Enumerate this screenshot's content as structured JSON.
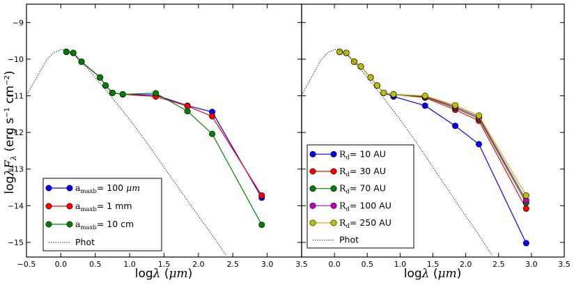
{
  "chart_data": [
    {
      "type": "line",
      "panel": "left",
      "xlabel": "logλ (μm)",
      "ylabel": "logλF_λ (erg s^-1 cm^-2)",
      "xlim": [
        -0.5,
        3.5
      ],
      "ylim": [
        -15.4,
        -8.5
      ],
      "xticks": [
        -0.5,
        0.0,
        0.5,
        1.0,
        1.5,
        2.0,
        2.5,
        3.0,
        3.5
      ],
      "xtick_labels": [
        "−0.5",
        "0.0",
        "0.5",
        "1.0",
        "1.5",
        "2.0",
        "2.5",
        "3.0",
        "3.5"
      ],
      "yticks": [
        -15,
        -14,
        -13,
        -12,
        -11,
        -10,
        -9
      ],
      "ytick_labels": [
        "−15",
        "−14",
        "−13",
        "−12",
        "−11",
        "−10",
        "−9"
      ],
      "legend_location": "lower-left",
      "series": [
        {
          "name": "a_maxb = 100 μm",
          "label_sub": "maxb",
          "label_rest": "= 100 ",
          "label_unit": "μm",
          "color": "#0000ff",
          "x": [
            0.08,
            0.18,
            0.3,
            0.57,
            0.65,
            0.75,
            0.9,
            1.38,
            1.84,
            2.2,
            2.92
          ],
          "y": [
            -9.8,
            -9.83,
            -10.07,
            -10.5,
            -10.72,
            -10.92,
            -10.96,
            -10.98,
            -11.27,
            -11.44,
            -13.78
          ]
        },
        {
          "name": "a_maxb = 1 mm",
          "label_sub": "maxb",
          "label_rest": "= 1 mm",
          "label_unit": "",
          "color": "#ff0000",
          "x": [
            0.08,
            0.18,
            0.3,
            0.57,
            0.65,
            0.75,
            0.9,
            1.38,
            1.84,
            2.2,
            2.92
          ],
          "y": [
            -9.8,
            -9.83,
            -10.07,
            -10.5,
            -10.72,
            -10.92,
            -10.96,
            -11.02,
            -11.28,
            -11.56,
            -13.72
          ]
        },
        {
          "name": "a_maxb = 10 cm",
          "label_sub": "maxb",
          "label_rest": "= 10 cm",
          "label_unit": "",
          "color": "#008000",
          "x": [
            0.08,
            0.18,
            0.3,
            0.57,
            0.65,
            0.75,
            0.9,
            1.38,
            1.84,
            2.2,
            2.92
          ],
          "y": [
            -9.8,
            -9.83,
            -10.07,
            -10.5,
            -10.72,
            -10.92,
            -10.96,
            -10.93,
            -11.42,
            -12.04,
            -14.52
          ]
        },
        {
          "name": "Phot",
          "color": "#000000",
          "style": "dotted",
          "x": [
            -0.5,
            -0.35,
            -0.2,
            -0.1,
            0.0,
            0.05,
            0.1,
            0.2,
            0.4,
            0.6,
            0.8,
            1.0,
            1.2,
            1.4,
            1.6,
            1.8,
            2.0,
            2.2,
            2.4
          ],
          "y": [
            -10.98,
            -10.5,
            -10.0,
            -9.82,
            -9.74,
            -9.74,
            -9.77,
            -9.9,
            -10.28,
            -10.72,
            -11.18,
            -11.65,
            -12.15,
            -12.68,
            -13.22,
            -13.75,
            -14.28,
            -14.8,
            -15.35
          ]
        }
      ]
    },
    {
      "type": "line",
      "panel": "right",
      "xlabel": "logλ (μm)",
      "ylabel": "",
      "xlim": [
        -0.5,
        3.5
      ],
      "ylim": [
        -15.4,
        -8.5
      ],
      "xticks": [
        0.0,
        0.5,
        1.0,
        1.5,
        2.0,
        2.5,
        3.0,
        3.5
      ],
      "xtick_labels": [
        "0.0",
        "0.5",
        "1.0",
        "1.5",
        "2.0",
        "2.5",
        "3.0",
        "3.5"
      ],
      "legend_location": "lower-left",
      "series": [
        {
          "name": "R_d = 10 AU",
          "label_sub": "d",
          "label_rest": "= 10 AU",
          "color": "#0000ff",
          "x": [
            0.08,
            0.18,
            0.3,
            0.4,
            0.55,
            0.65,
            0.75,
            0.9,
            1.38,
            1.84,
            2.2,
            2.92
          ],
          "y": [
            -9.8,
            -9.83,
            -10.07,
            -10.2,
            -10.5,
            -10.72,
            -10.92,
            -11.02,
            -11.27,
            -11.82,
            -12.32,
            -15.02
          ]
        },
        {
          "name": "R_d = 30 AU",
          "label_sub": "d",
          "label_rest": "= 30 AU",
          "color": "#ff0000",
          "x": [
            0.08,
            0.18,
            0.3,
            0.4,
            0.55,
            0.65,
            0.75,
            0.9,
            1.38,
            1.84,
            2.2,
            2.92
          ],
          "y": [
            -9.8,
            -9.83,
            -10.07,
            -10.2,
            -10.5,
            -10.72,
            -10.92,
            -10.96,
            -11.05,
            -11.38,
            -11.68,
            -14.08
          ]
        },
        {
          "name": "R_d = 70 AU",
          "label_sub": "d",
          "label_rest": "= 70 AU",
          "color": "#008000",
          "x": [
            0.08,
            0.18,
            0.3,
            0.4,
            0.55,
            0.65,
            0.75,
            0.9,
            1.38,
            1.84,
            2.2,
            2.92
          ],
          "y": [
            -9.8,
            -9.83,
            -10.07,
            -10.2,
            -10.5,
            -10.72,
            -10.92,
            -10.96,
            -11.03,
            -11.33,
            -11.62,
            -13.92
          ]
        },
        {
          "name": "R_d = 100 AU",
          "label_sub": "d",
          "label_rest": "= 100 AU",
          "color": "#bf00bf",
          "x": [
            0.08,
            0.18,
            0.3,
            0.4,
            0.55,
            0.65,
            0.75,
            0.9,
            1.38,
            1.84,
            2.2,
            2.92
          ],
          "y": [
            -9.8,
            -9.83,
            -10.07,
            -10.2,
            -10.5,
            -10.72,
            -10.92,
            -10.96,
            -11.01,
            -11.3,
            -11.58,
            -13.85
          ]
        },
        {
          "name": "R_d = 250 AU",
          "label_sub": "d",
          "label_rest": "= 250 AU",
          "color": "#bfbf00",
          "x": [
            0.08,
            0.18,
            0.3,
            0.4,
            0.55,
            0.65,
            0.75,
            0.9,
            1.38,
            1.84,
            2.2,
            2.92
          ],
          "y": [
            -9.8,
            -9.83,
            -10.07,
            -10.2,
            -10.5,
            -10.72,
            -10.92,
            -10.96,
            -11.0,
            -11.26,
            -11.54,
            -13.72
          ]
        },
        {
          "name": "Phot",
          "color": "#000000",
          "style": "dotted",
          "x": [
            -0.5,
            -0.35,
            -0.2,
            -0.1,
            0.0,
            0.05,
            0.1,
            0.2,
            0.4,
            0.6,
            0.8,
            1.0,
            1.2,
            1.4,
            1.6,
            1.8,
            2.0,
            2.2,
            2.4
          ],
          "y": [
            -10.98,
            -10.5,
            -10.0,
            -9.82,
            -9.74,
            -9.74,
            -9.77,
            -9.9,
            -10.28,
            -10.72,
            -11.18,
            -11.65,
            -12.15,
            -12.68,
            -13.22,
            -13.75,
            -14.28,
            -14.8,
            -15.35
          ]
        }
      ]
    }
  ]
}
